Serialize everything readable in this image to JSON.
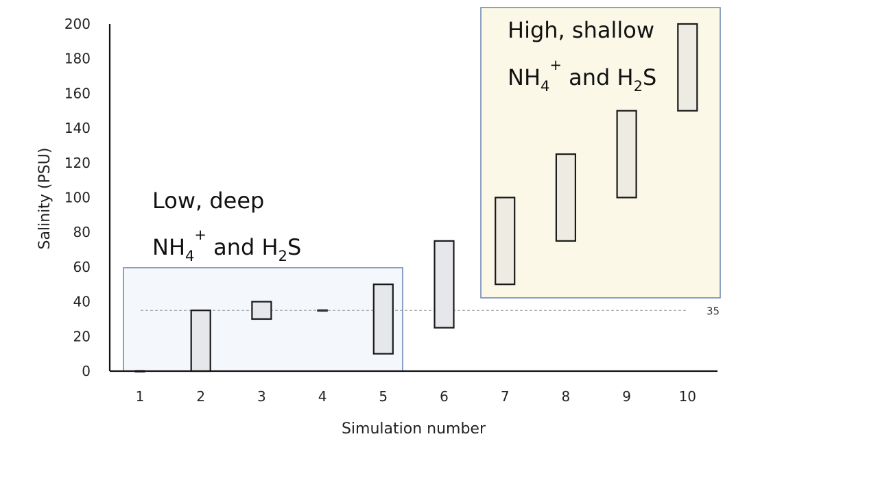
{
  "chart_data": {
    "type": "bar",
    "subtype": "floating-range",
    "title": "",
    "xlabel": "Simulation number",
    "ylabel": "Salinity (PSU)",
    "categories": [
      "1",
      "2",
      "3",
      "4",
      "5",
      "6",
      "7",
      "8",
      "9",
      "10"
    ],
    "ranges": [
      {
        "category": "1",
        "low": 0,
        "high": 0
      },
      {
        "category": "2",
        "low": 0,
        "high": 35
      },
      {
        "category": "3",
        "low": 30,
        "high": 40
      },
      {
        "category": "4",
        "low": 35,
        "high": 35
      },
      {
        "category": "5",
        "low": 10,
        "high": 50
      },
      {
        "category": "6",
        "low": 25,
        "high": 75
      },
      {
        "category": "7",
        "low": 50,
        "high": 100
      },
      {
        "category": "8",
        "low": 75,
        "high": 125
      },
      {
        "category": "9",
        "low": 100,
        "high": 150
      },
      {
        "category": "10",
        "low": 150,
        "high": 200
      }
    ],
    "ylim": [
      0,
      200
    ],
    "yticks": [
      0,
      20,
      40,
      60,
      80,
      100,
      120,
      140,
      160,
      180,
      200
    ],
    "grid": false,
    "reference_line": {
      "value": 35,
      "label": "35",
      "style": "dashed"
    },
    "annotations": {
      "low_group": {
        "categories": [
          "1",
          "2",
          "3",
          "4",
          "5"
        ],
        "line1": "Low, deep",
        "nh": "NH",
        "nh_sub": "4",
        "nh_sup": "+",
        "mid": " and H",
        "h_sub": "2",
        "end": "S",
        "fill": "#f4f7fc",
        "stroke": "#4f6fa8"
      },
      "high_group": {
        "categories": [
          "7",
          "8",
          "9",
          "10"
        ],
        "line1": "High, shallow",
        "nh": "NH",
        "nh_sub": "4",
        "nh_sup": "+",
        "mid": " and H",
        "h_sub": "2",
        "end": "S",
        "fill": "#fbf8e8",
        "stroke": "#4f6fa8"
      }
    },
    "colors": {
      "bar_fill_low": "#e6e7ea",
      "bar_fill_high": "#eeece2",
      "bar_stroke": "#1a1a1a",
      "axis": "#111111",
      "ref_line": "#999999"
    }
  }
}
